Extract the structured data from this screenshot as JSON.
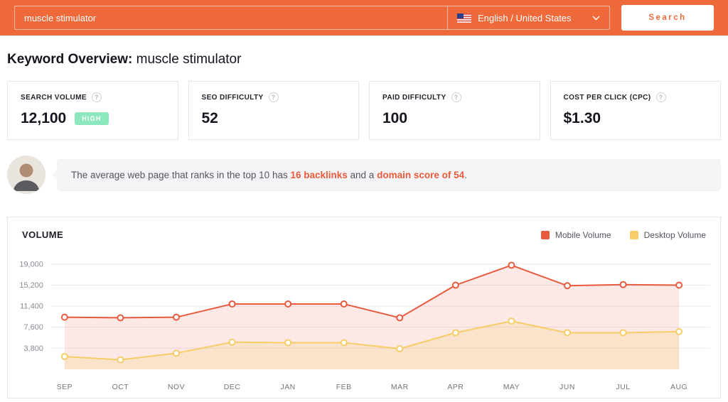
{
  "accent_color": "#ef6a3b",
  "header": {
    "search_input_value": "muscle stimulator",
    "language_label": "English / United States",
    "search_button_label": "Search"
  },
  "page_title": {
    "prefix": "Keyword Overview:",
    "keyword": " muscle stimulator"
  },
  "metric_cards": [
    {
      "label": "SEARCH VOLUME",
      "value": "12,100",
      "badge": "HIGH",
      "badge_color": "#8de7bc"
    },
    {
      "label": "SEO DIFFICULTY",
      "value": "52"
    },
    {
      "label": "PAID DIFFICULTY",
      "value": "100"
    },
    {
      "label": "COST PER CLICK (CPC)",
      "value": "$1.30"
    }
  ],
  "insight_banner": {
    "text_1": "The average web page that ranks in the top 10 has ",
    "link_1": "16 backlinks",
    "text_2": " and a ",
    "link_2": "domain score of 54",
    "text_3": "."
  },
  "chart_data": {
    "type": "line",
    "title": "VOLUME",
    "categories": [
      "SEP",
      "OCT",
      "NOV",
      "DEC",
      "JAN",
      "FEB",
      "MAR",
      "APR",
      "MAY",
      "JUN",
      "JUL",
      "AUG"
    ],
    "series": [
      {
        "name": "Mobile Volume",
        "color": "#e85a3e",
        "fill": "rgba(232,90,62,0.14)",
        "values": [
          9400,
          9300,
          9400,
          11800,
          11800,
          11800,
          9300,
          15200,
          18800,
          15100,
          15300,
          15200
        ]
      },
      {
        "name": "Desktop Volume",
        "color": "#f6cd67",
        "fill": "rgba(246,205,103,0.20)",
        "values": [
          2300,
          1700,
          2900,
          4900,
          4800,
          4800,
          3700,
          6600,
          8700,
          6600,
          6600,
          6800
        ]
      }
    ],
    "y_ticks": [
      19000,
      15200,
      11400,
      7600,
      3800
    ],
    "y_max": 20500,
    "ylim": [
      0,
      20500
    ],
    "grid": true,
    "legend_position": "top-right"
  }
}
